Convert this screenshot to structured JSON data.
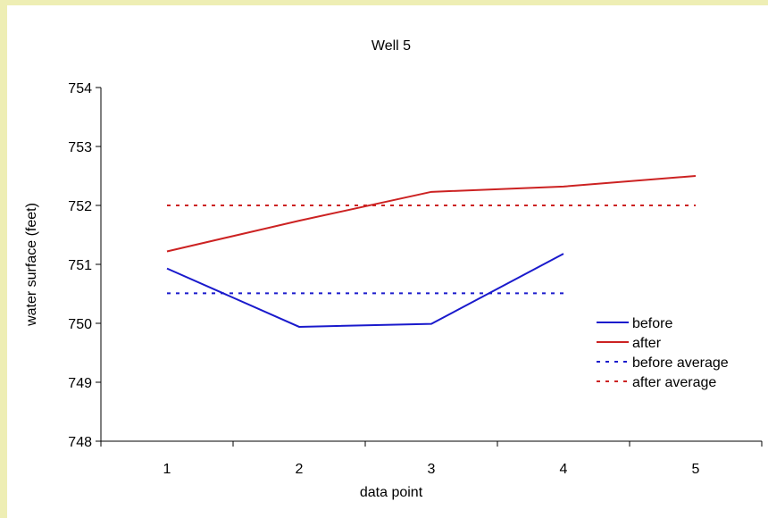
{
  "chart_data": {
    "type": "line",
    "title": "Well 5",
    "xlabel": "data point",
    "ylabel": "water surface (feet)",
    "categories": [
      "1",
      "2",
      "3",
      "4",
      "5"
    ],
    "ylim": [
      748,
      754
    ],
    "yticks": [
      "748",
      "749",
      "750",
      "751",
      "752",
      "753",
      "754"
    ],
    "grid": false,
    "legend_position": "right",
    "series": [
      {
        "name": "before",
        "values": [
          750.93,
          749.94,
          749.99,
          751.18,
          null
        ],
        "color": "#1a1acc",
        "style": "solid"
      },
      {
        "name": "after",
        "values": [
          751.22,
          751.74,
          752.23,
          752.32,
          752.5
        ],
        "color": "#cc2222",
        "style": "solid"
      },
      {
        "name": "before average",
        "values": [
          750.51,
          750.51,
          750.51,
          750.51,
          null
        ],
        "color": "#1a1acc",
        "style": "dotted"
      },
      {
        "name": "after average",
        "values": [
          752.0,
          752.0,
          752.0,
          752.0,
          752.0
        ],
        "color": "#cc2222",
        "style": "dotted"
      }
    ]
  }
}
